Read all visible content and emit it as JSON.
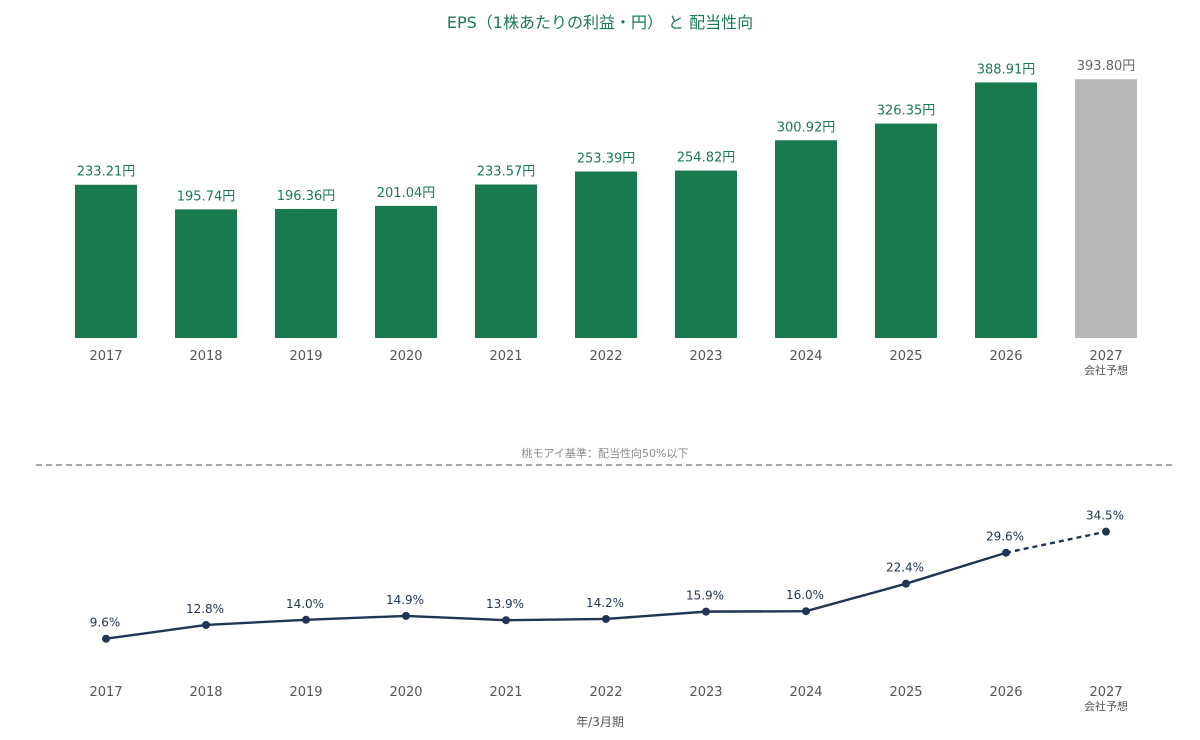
{
  "chart_data": [
    {
      "type": "bar",
      "title": "EPS（1株あたりの利益・円） と 配当性向",
      "categories": [
        "2017",
        "2018",
        "2019",
        "2020",
        "2021",
        "2022",
        "2023",
        "2024",
        "2025",
        "2026",
        "2027"
      ],
      "category_notes": [
        "",
        "",
        "",
        "",
        "",
        "",
        "",
        "",
        "",
        "",
        "会社予想"
      ],
      "values": [
        233.21,
        195.74,
        196.36,
        201.04,
        233.57,
        253.39,
        254.82,
        300.92,
        326.35,
        388.91,
        393.8
      ],
      "value_labels": [
        "233.21円",
        "195.74円",
        "196.36円",
        "201.04円",
        "233.57円",
        "253.39円",
        "254.82円",
        "300.92円",
        "326.35円",
        "388.91円",
        "393.80円"
      ],
      "forecast_index": 10,
      "ylim": [
        0,
        420
      ],
      "colors": {
        "actual": "#1a7a4f",
        "forecast": "#b8b8b8",
        "forecast_label": "#666666"
      }
    },
    {
      "type": "line",
      "categories": [
        "2017",
        "2018",
        "2019",
        "2020",
        "2021",
        "2022",
        "2023",
        "2024",
        "2025",
        "2026",
        "2027"
      ],
      "category_notes": [
        "",
        "",
        "",
        "",
        "",
        "",
        "",
        "",
        "",
        "",
        "会社予想"
      ],
      "values": [
        9.6,
        12.8,
        14.0,
        14.9,
        13.9,
        14.2,
        15.9,
        16.0,
        22.4,
        29.6,
        34.5
      ],
      "value_labels": [
        "9.6%",
        "12.8%",
        "14.0%",
        "14.9%",
        "13.9%",
        "14.2%",
        "15.9%",
        "16.0%",
        "22.4%",
        "29.6%",
        "34.5%"
      ],
      "forecast_index": 10,
      "reference_line": {
        "value": 50,
        "label": "桃モアイ基準：配当性向50%以下"
      },
      "xlabel": "年/3月期",
      "ylim": [
        0,
        50
      ],
      "colors": {
        "line": "#1f3553",
        "reference": "#888888"
      }
    }
  ]
}
